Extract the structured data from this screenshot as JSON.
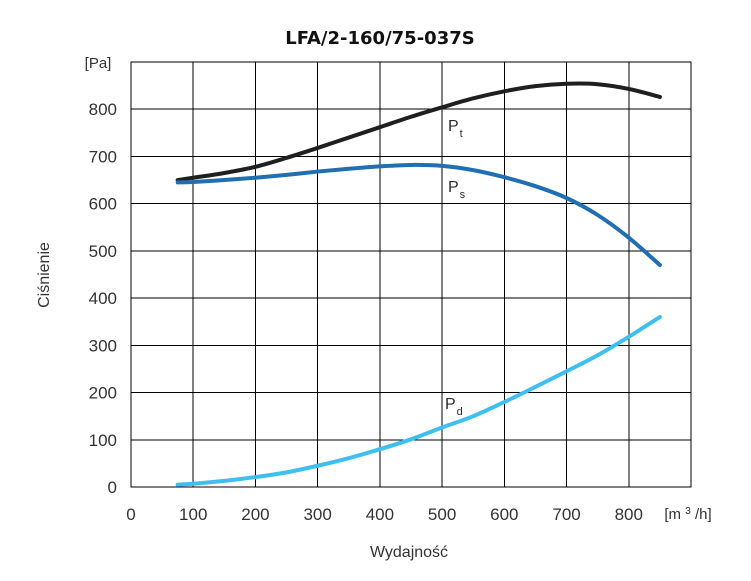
{
  "chart_data": {
    "type": "line",
    "title": "LFA/2-160/75-037S",
    "xlabel": "Wydajność",
    "ylabel": "Ciśnienie",
    "x_unit": {
      "prefix": "[m",
      "sup": "3",
      "suffix": "/h]"
    },
    "y_unit": "[Pa]",
    "xlim": [
      0,
      900
    ],
    "ylim": [
      0,
      900
    ],
    "xticks": [
      0,
      100,
      200,
      300,
      400,
      500,
      600,
      700,
      800
    ],
    "yticks": [
      0,
      100,
      200,
      300,
      400,
      500,
      600,
      700,
      800
    ],
    "grid": true,
    "series": [
      {
        "name": "Pt",
        "label_main": "P",
        "label_sub": "t",
        "color": "#1f1f1f",
        "points": [
          [
            75,
            650
          ],
          [
            100,
            655
          ],
          [
            150,
            665
          ],
          [
            200,
            678
          ],
          [
            250,
            697
          ],
          [
            300,
            718
          ],
          [
            350,
            740
          ],
          [
            400,
            762
          ],
          [
            450,
            784
          ],
          [
            500,
            804
          ],
          [
            550,
            823
          ],
          [
            600,
            838
          ],
          [
            650,
            849
          ],
          [
            700,
            854
          ],
          [
            750,
            853
          ],
          [
            800,
            843
          ],
          [
            850,
            826
          ]
        ]
      },
      {
        "name": "Ps",
        "label_main": "P",
        "label_sub": "s",
        "color": "#1f6fb2",
        "points": [
          [
            75,
            645
          ],
          [
            100,
            646
          ],
          [
            150,
            650
          ],
          [
            200,
            655
          ],
          [
            250,
            661
          ],
          [
            300,
            668
          ],
          [
            350,
            674
          ],
          [
            400,
            679
          ],
          [
            450,
            682
          ],
          [
            500,
            680
          ],
          [
            550,
            671
          ],
          [
            600,
            656
          ],
          [
            650,
            637
          ],
          [
            700,
            612
          ],
          [
            750,
            576
          ],
          [
            800,
            528
          ],
          [
            850,
            470
          ]
        ]
      },
      {
        "name": "Pd",
        "label_main": "P",
        "label_sub": "d",
        "color": "#3fbfef",
        "points": [
          [
            75,
            5
          ],
          [
            100,
            7
          ],
          [
            150,
            13
          ],
          [
            200,
            21
          ],
          [
            250,
            31
          ],
          [
            300,
            45
          ],
          [
            350,
            61
          ],
          [
            400,
            80
          ],
          [
            450,
            101
          ],
          [
            500,
            126
          ],
          [
            550,
            150
          ],
          [
            600,
            180
          ],
          [
            650,
            212
          ],
          [
            700,
            245
          ],
          [
            750,
            279
          ],
          [
            800,
            318
          ],
          [
            850,
            360
          ]
        ]
      }
    ]
  }
}
